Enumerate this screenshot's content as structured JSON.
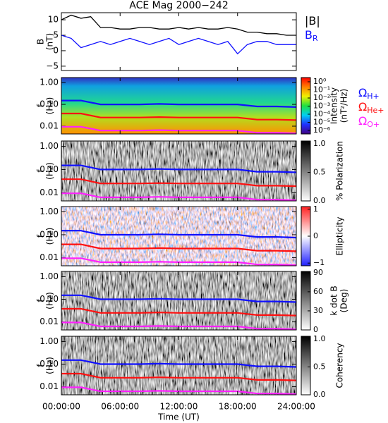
{
  "chart_data": [
    {
      "type": "line",
      "title": "ACE Mag 2000−242",
      "ylabel": [
        "B",
        "(nT)"
      ],
      "x": [
        0,
        1,
        2,
        3,
        4,
        5,
        6,
        7,
        8,
        9,
        10,
        11,
        12,
        13,
        14,
        15,
        16,
        17,
        18,
        19,
        20,
        21,
        22,
        23,
        24
      ],
      "xlim": [
        0,
        24
      ],
      "ylim": [
        -6.4,
        12.3
      ],
      "yticks": [
        {
          "value": -5,
          "label": "−5"
        },
        0,
        5,
        10
      ],
      "series": [
        {
          "name": "|B|",
          "color": "#000000",
          "values": [
            10,
            11.5,
            10.5,
            11,
            7.5,
            7.5,
            7,
            7,
            7.5,
            7.5,
            7,
            7,
            7.5,
            7,
            7.5,
            7,
            7,
            7.5,
            7,
            6,
            6,
            5.5,
            5.5,
            5,
            5
          ]
        },
        {
          "name": "B",
          "subscript": "R",
          "color": "#1010ff",
          "values": [
            5,
            4,
            1,
            2,
            3,
            2,
            3,
            4,
            3,
            2,
            3,
            4,
            2,
            3,
            4,
            3,
            2,
            3,
            -1,
            2,
            3,
            3,
            2,
            2,
            2
          ]
        }
      ]
    },
    {
      "type": "spectrogram",
      "ylabel": [
        "f",
        "(Hz)"
      ],
      "log": true,
      "x": [
        0,
        2,
        4,
        6,
        8,
        10,
        12,
        14,
        16,
        18,
        20,
        22,
        24
      ],
      "xlim": [
        0,
        24
      ],
      "ylim": [
        0.0044,
        1.7
      ],
      "yticks": [
        {
          "value": 1,
          "label": "1.00"
        },
        {
          "value": 0.1,
          "label": "0.10"
        },
        {
          "value": 0.01,
          "label": "0.01"
        }
      ],
      "colorbar": {
        "label": [
          "Intensity",
          "(nT²/Hz)"
        ],
        "log": true,
        "lim": [
          3.7e-07,
          3.3
        ],
        "colors": [
          "#400080",
          "#2030ff",
          "#00d0f0",
          "#20e040",
          "#f0f000",
          "#ff8000",
          "#ff0000"
        ],
        "ticks": [
          {
            "value": 1,
            "label": "10⁰"
          },
          {
            "value": 0.1,
            "label": "10⁻¹"
          },
          {
            "value": 0.01,
            "label": "10⁻²"
          },
          {
            "value": 0.001,
            "label": "10⁻³"
          },
          {
            "value": 0.0001,
            "label": "10⁻⁴"
          },
          {
            "value": 1e-05,
            "label": "10⁻⁵"
          },
          {
            "value": 1e-06,
            "label": "10⁻⁶"
          }
        ]
      },
      "series": [
        {
          "name": "Ω",
          "subscript": "H+",
          "color": "#1010ff",
          "values": [
            0.15,
            0.15,
            0.1,
            0.1,
            0.1,
            0.105,
            0.1,
            0.1,
            0.1,
            0.1,
            0.08,
            0.08,
            0.075
          ]
        },
        {
          "name": "Ω",
          "subscript": "He+",
          "color": "#ff1010",
          "values": [
            0.038,
            0.038,
            0.025,
            0.025,
            0.025,
            0.026,
            0.025,
            0.025,
            0.025,
            0.025,
            0.02,
            0.02,
            0.019
          ]
        },
        {
          "name": "Ω",
          "subscript": "O+",
          "color": "#ff20ff",
          "values": [
            0.0094,
            0.0094,
            0.0063,
            0.0063,
            0.0063,
            0.0066,
            0.0063,
            0.0063,
            0.0063,
            0.0063,
            0.005,
            0.005,
            0.0047
          ]
        }
      ]
    },
    {
      "type": "spectrogram",
      "ylabel": [
        "f",
        "(Hz)"
      ],
      "log": true,
      "x": [
        0,
        2,
        4,
        6,
        8,
        10,
        12,
        14,
        16,
        18,
        20,
        22,
        24
      ],
      "xlim": [
        0,
        24
      ],
      "ylim": [
        0.0044,
        1.7
      ],
      "yticks": [
        {
          "value": 1,
          "label": "1.00"
        },
        {
          "value": 0.1,
          "label": "0.10"
        },
        {
          "value": 0.01,
          "label": "0.01"
        }
      ],
      "colorbar": {
        "label": [
          "% Polarization"
        ],
        "log": false,
        "lim": [
          0,
          1.05
        ],
        "colors": [
          "#ffffff",
          "#000000"
        ],
        "ticks": [
          {
            "value": 0,
            "label": "0.0"
          },
          {
            "value": 0.5,
            "label": "0.5"
          },
          {
            "value": 1,
            "label": "1.0"
          }
        ]
      },
      "series": [
        {
          "color": "#1010ff",
          "values": [
            0.15,
            0.15,
            0.1,
            0.1,
            0.1,
            0.105,
            0.1,
            0.1,
            0.1,
            0.1,
            0.08,
            0.08,
            0.075
          ]
        },
        {
          "color": "#ff1010",
          "values": [
            0.038,
            0.038,
            0.025,
            0.025,
            0.025,
            0.026,
            0.025,
            0.025,
            0.025,
            0.025,
            0.02,
            0.02,
            0.019
          ]
        },
        {
          "color": "#ff20ff",
          "values": [
            0.0094,
            0.0094,
            0.0063,
            0.0063,
            0.0063,
            0.0066,
            0.0063,
            0.0063,
            0.0063,
            0.0063,
            0.005,
            0.005,
            0.0047
          ]
        }
      ]
    },
    {
      "type": "spectrogram",
      "ylabel": [
        "f",
        "(Hz)"
      ],
      "log": true,
      "x": [
        0,
        2,
        4,
        6,
        8,
        10,
        12,
        14,
        16,
        18,
        20,
        22,
        24
      ],
      "xlim": [
        0,
        24
      ],
      "ylim": [
        0.0044,
        1.7
      ],
      "yticks": [
        {
          "value": 1,
          "label": "1.00"
        },
        {
          "value": 0.1,
          "label": "0.10"
        },
        {
          "value": 0.01,
          "label": "0.01"
        }
      ],
      "colorbar": {
        "label": [
          "Ellipticity"
        ],
        "log": false,
        "lim": [
          -1.1,
          1.1
        ],
        "colors": [
          "#2020ff",
          "#ffffff",
          "#ff2020"
        ],
        "ticks": [
          {
            "value": -1,
            "label": "−1"
          },
          0,
          1
        ]
      },
      "series": [
        {
          "color": "#1010ff",
          "values": [
            0.15,
            0.15,
            0.1,
            0.1,
            0.1,
            0.105,
            0.1,
            0.1,
            0.1,
            0.1,
            0.08,
            0.08,
            0.075
          ]
        },
        {
          "color": "#ff1010",
          "values": [
            0.038,
            0.038,
            0.025,
            0.025,
            0.025,
            0.026,
            0.025,
            0.025,
            0.025,
            0.025,
            0.02,
            0.02,
            0.019
          ]
        },
        {
          "color": "#ff20ff",
          "values": [
            0.0094,
            0.0094,
            0.0063,
            0.0063,
            0.0063,
            0.0066,
            0.0063,
            0.0063,
            0.0063,
            0.0063,
            0.005,
            0.005,
            0.0047
          ]
        }
      ]
    },
    {
      "type": "spectrogram",
      "ylabel": [
        "f",
        "(Hz)"
      ],
      "log": true,
      "x": [
        0,
        2,
        4,
        6,
        8,
        10,
        12,
        14,
        16,
        18,
        20,
        22,
        24
      ],
      "xlim": [
        0,
        24
      ],
      "ylim": [
        0.0044,
        1.7
      ],
      "yticks": [
        {
          "value": 1,
          "label": "1.00"
        },
        {
          "value": 0.1,
          "label": "0.10"
        },
        {
          "value": 0.01,
          "label": "0.01"
        }
      ],
      "colorbar": {
        "label": [
          "k dot B",
          "(Deg)"
        ],
        "log": false,
        "lim": [
          0,
          92
        ],
        "colors": [
          "#ffffff",
          "#000000"
        ],
        "ticks": [
          0,
          30,
          60,
          90
        ]
      },
      "series": [
        {
          "color": "#1010ff",
          "values": [
            0.15,
            0.15,
            0.1,
            0.1,
            0.1,
            0.105,
            0.1,
            0.1,
            0.1,
            0.1,
            0.08,
            0.08,
            0.075
          ]
        },
        {
          "color": "#ff1010",
          "values": [
            0.038,
            0.038,
            0.025,
            0.025,
            0.025,
            0.026,
            0.025,
            0.025,
            0.025,
            0.025,
            0.02,
            0.02,
            0.019
          ]
        },
        {
          "color": "#ff20ff",
          "values": [
            0.0094,
            0.0094,
            0.0063,
            0.0063,
            0.0063,
            0.0066,
            0.0063,
            0.0063,
            0.0063,
            0.0063,
            0.005,
            0.005,
            0.0047
          ]
        }
      ]
    },
    {
      "type": "spectrogram",
      "ylabel": [
        "f",
        "(Hz)"
      ],
      "log": true,
      "x": [
        0,
        2,
        4,
        6,
        8,
        10,
        12,
        14,
        16,
        18,
        20,
        22,
        24
      ],
      "xlim": [
        0,
        24
      ],
      "ylim": [
        0.0044,
        1.7
      ],
      "yticks": [
        {
          "value": 1,
          "label": "1.00"
        },
        {
          "value": 0.1,
          "label": "0.10"
        },
        {
          "value": 0.01,
          "label": "0.01"
        }
      ],
      "colorbar": {
        "label": [
          "Coherency"
        ],
        "log": false,
        "lim": [
          0,
          1.05
        ],
        "colors": [
          "#ffffff",
          "#000000"
        ],
        "ticks": [
          {
            "value": 0,
            "label": "0.0"
          },
          {
            "value": 0.5,
            "label": "0.5"
          },
          {
            "value": 1,
            "label": "1.0"
          }
        ]
      },
      "series": [
        {
          "color": "#1010ff",
          "values": [
            0.15,
            0.15,
            0.1,
            0.1,
            0.1,
            0.105,
            0.1,
            0.1,
            0.1,
            0.1,
            0.08,
            0.08,
            0.075
          ]
        },
        {
          "color": "#ff1010",
          "values": [
            0.038,
            0.038,
            0.025,
            0.025,
            0.025,
            0.026,
            0.025,
            0.025,
            0.025,
            0.025,
            0.02,
            0.02,
            0.019
          ]
        },
        {
          "color": "#ff20ff",
          "values": [
            0.0094,
            0.0094,
            0.0063,
            0.0063,
            0.0063,
            0.0066,
            0.0063,
            0.0063,
            0.0063,
            0.0063,
            0.005,
            0.005,
            0.0047
          ]
        }
      ],
      "xticks": [
        {
          "value": 0,
          "label": "00:00:00"
        },
        {
          "value": 6,
          "label": "06:00:00"
        },
        {
          "value": 12,
          "label": "12:00:00"
        },
        {
          "value": 18,
          "label": "18:00:00"
        },
        {
          "value": 24,
          "label": "24:00:00"
        }
      ],
      "xlabel": "Time (UT)"
    }
  ]
}
